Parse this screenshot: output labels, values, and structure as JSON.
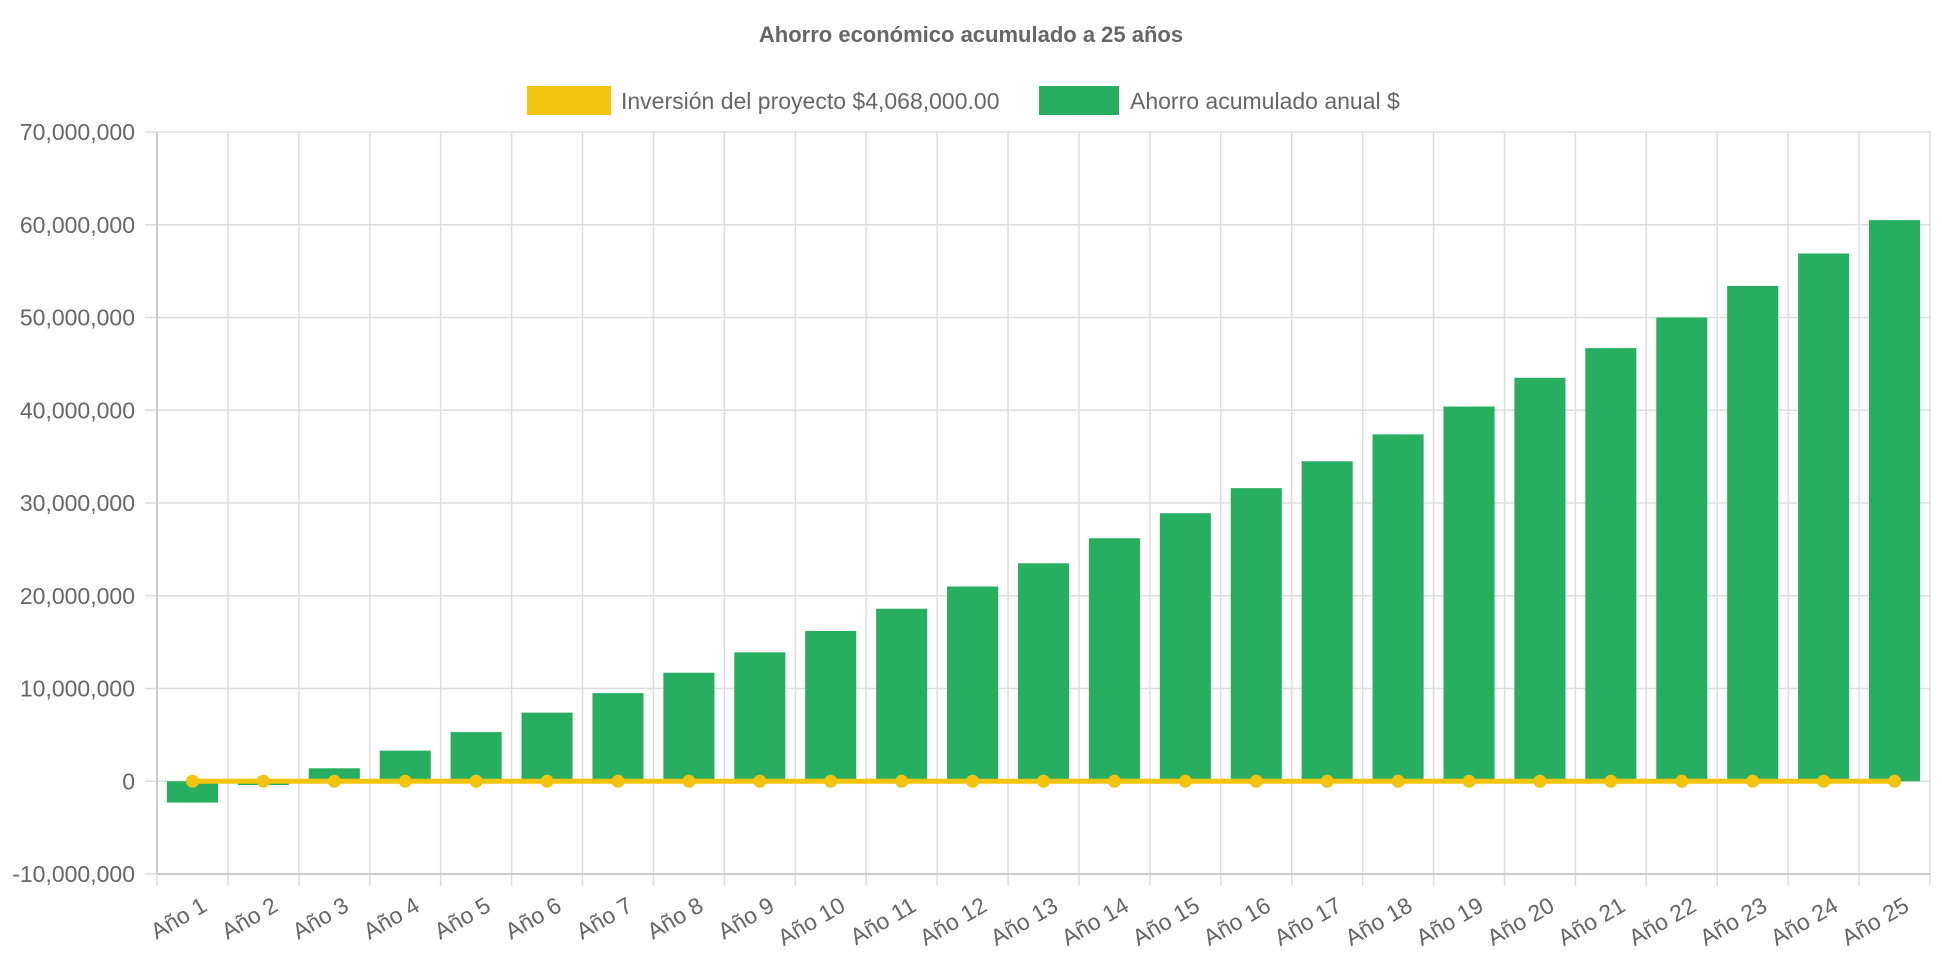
{
  "chart_data": {
    "type": "bar",
    "title": "Ahorro económico acumulado a 25 años",
    "categories": [
      "Año 1",
      "Año 2",
      "Año 3",
      "Año 4",
      "Año 5",
      "Año 6",
      "Año 7",
      "Año 8",
      "Año 9",
      "Año 10",
      "Año 11",
      "Año 12",
      "Año 13",
      "Año 14",
      "Año 15",
      "Año 16",
      "Año 17",
      "Año 18",
      "Año 19",
      "Año 20",
      "Año 21",
      "Año 22",
      "Año 23",
      "Año 24",
      "Año 25"
    ],
    "series": [
      {
        "name": "Inversión del proyecto $4,068,000.00",
        "type": "line",
        "color": "#f2c40f",
        "values": [
          0,
          0,
          0,
          0,
          0,
          0,
          0,
          0,
          0,
          0,
          0,
          0,
          0,
          0,
          0,
          0,
          0,
          0,
          0,
          0,
          0,
          0,
          0,
          0,
          0
        ]
      },
      {
        "name": "Ahorro acumulado anual $",
        "type": "bar",
        "color": "#27ae60",
        "values": [
          -2300000,
          -400000,
          1400000,
          3300000,
          5300000,
          7400000,
          9500000,
          11700000,
          13900000,
          16200000,
          18600000,
          21000000,
          23500000,
          26200000,
          28900000,
          31600000,
          34500000,
          37400000,
          40400000,
          43500000,
          46700000,
          50000000,
          53400000,
          56900000,
          60500000
        ]
      }
    ],
    "yticks": [
      "70,000,000",
      "60,000,000",
      "50,000,000",
      "40,000,000",
      "30,000,000",
      "20,000,000",
      "10,000,000",
      "0",
      "-10,000,000"
    ],
    "ylim": [
      -10000000,
      70000000
    ],
    "xlabel": "",
    "ylabel": "",
    "grid": true,
    "legend_position": "top-center"
  }
}
